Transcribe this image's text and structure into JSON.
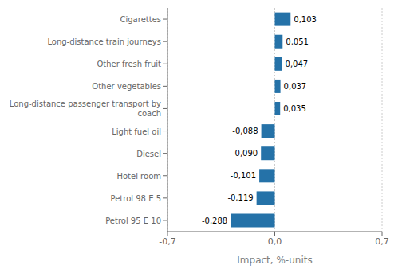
{
  "chart_data": {
    "type": "bar",
    "orientation": "horizontal",
    "categories": [
      "Petrol 95 E 10",
      "Petrol 98 E 5",
      "Hotel room",
      "Diesel",
      "Light fuel oil",
      "Long-distance passenger transport by\ncoach",
      "Other vegetables",
      "Other fresh fruit",
      "Long-distance train journeys",
      "Cigarettes"
    ],
    "values": [
      -0.288,
      -0.119,
      -0.101,
      -0.09,
      -0.088,
      0.035,
      0.037,
      0.047,
      0.051,
      0.103
    ],
    "value_labels": [
      "-0,288",
      "-0,119",
      "-0,101",
      "-0,090",
      "-0,088",
      "0,035",
      "0,037",
      "0,047",
      "0,051",
      "0,103"
    ],
    "data_labels": true,
    "color": "#2572a8",
    "xlabel": "Impact, %-units",
    "xlim": [
      -0.7,
      0.7
    ],
    "xticks": [
      {
        "value": -0.7,
        "label": "-0,7"
      },
      {
        "value": 0.0,
        "label": "0,0"
      },
      {
        "value": 0.7,
        "label": "0,7"
      }
    ],
    "grid": true
  }
}
